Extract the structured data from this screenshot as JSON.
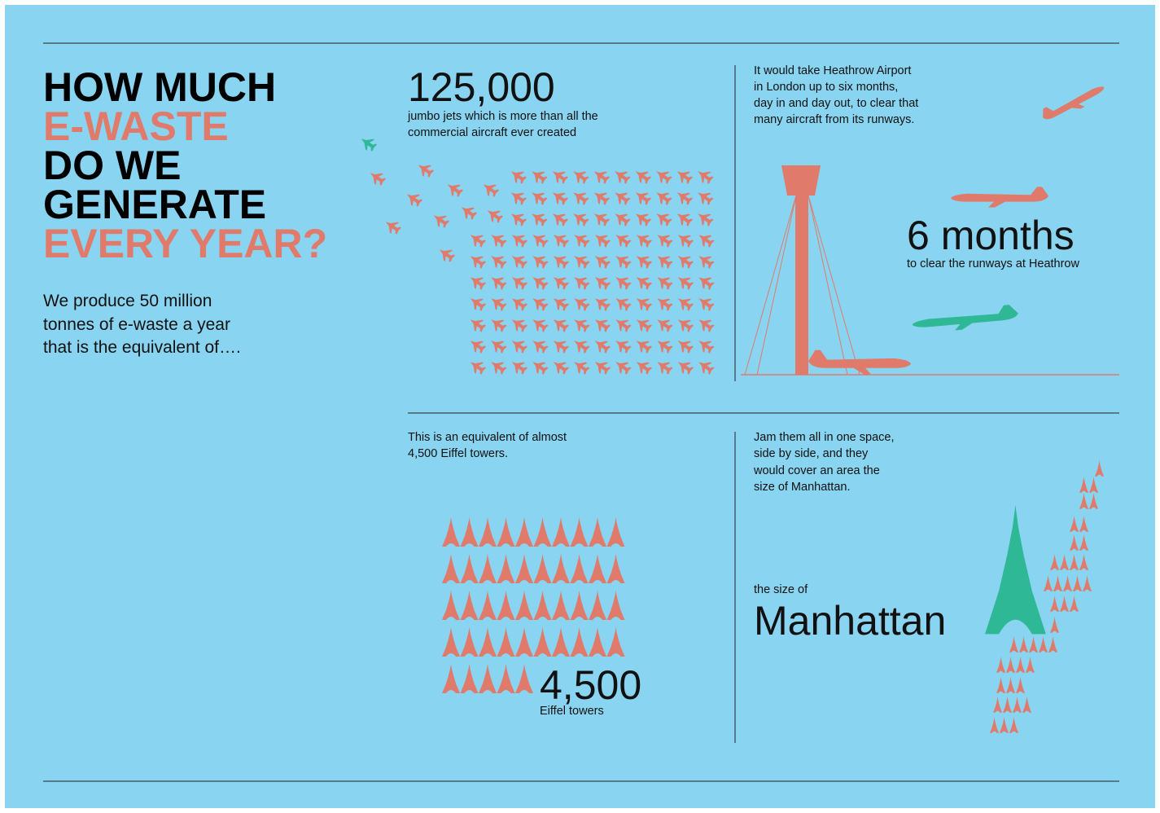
{
  "header": {
    "title_lines": [
      {
        "text": "HOW MUCH",
        "color": "#000000"
      },
      {
        "text": "E-WASTE",
        "color": "#e07b6c"
      },
      {
        "text": "DO WE",
        "color": "#000000"
      },
      {
        "text": "GENERATE",
        "color": "#000000"
      },
      {
        "text": "EVERY YEAR?",
        "color": "#e07b6c"
      }
    ],
    "intro_lines": [
      "We produce 50 million",
      "tonnes of e-waste a year",
      "that is the equivalent of…."
    ]
  },
  "jets": {
    "figure": "125,000",
    "caption_lines": [
      "jumbo jets which is more than all the",
      "commercial aircraft ever created"
    ]
  },
  "heathrow": {
    "text_lines": [
      "It would take Heathrow Airport",
      "in London up to six months,",
      "day in and day out, to clear that",
      "many aircraft from its runways."
    ],
    "figure": "6 months",
    "caption": "to clear the runways at Heathrow"
  },
  "eiffel": {
    "text_lines": [
      "This is an equivalent of almost",
      "4,500 Eiffel towers."
    ],
    "figure": "4,500",
    "caption": "Eiffel towers"
  },
  "manhattan": {
    "text_lines": [
      "Jam them all in one space,",
      "side by side, and they",
      "would cover an area the",
      "size of Manhattan."
    ],
    "lead": "the size of",
    "figure": "Manhattan"
  }
}
